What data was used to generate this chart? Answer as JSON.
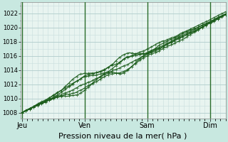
{
  "title": "",
  "xlabel": "Pression niveau de la mer( hPa )",
  "ylabel": "",
  "fig_bg_color": "#c8e8e0",
  "plot_bg_color": "#e8f4f0",
  "grid_color": "#b0cccc",
  "grid_minor_color": "#c8dede",
  "line_color": "#1a5c1a",
  "vline_color": "#2a6c2a",
  "x_tick_labels": [
    "Jeu",
    "Ven",
    "Sam",
    "Dim"
  ],
  "x_tick_positions": [
    0,
    96,
    192,
    288
  ],
  "ylim": [
    1007.2,
    1023.5
  ],
  "xlim": [
    -2,
    312
  ],
  "yticks": [
    1008,
    1010,
    1012,
    1014,
    1016,
    1018,
    1020,
    1022
  ],
  "n_points": 313
}
